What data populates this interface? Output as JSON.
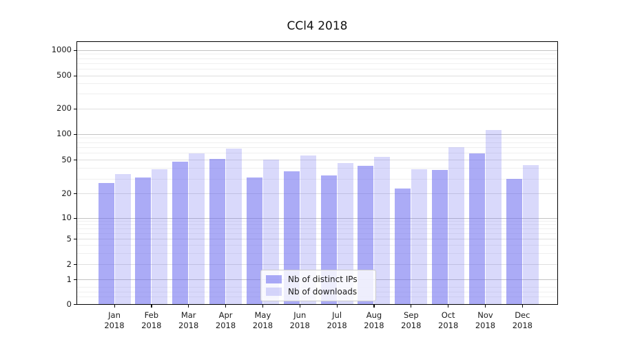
{
  "title": "CCl4 2018",
  "year_label": "2018",
  "months": [
    "Jan",
    "Feb",
    "Mar",
    "Apr",
    "May",
    "Jun",
    "Jul",
    "Aug",
    "Sep",
    "Oct",
    "Nov",
    "Dec"
  ],
  "y_axis": {
    "tick_labels": [
      "1000",
      "500",
      "200",
      "100",
      "50",
      "20",
      "10",
      "5",
      "2",
      "1",
      "0"
    ],
    "tick_values": [
      1000,
      500,
      200,
      100,
      50,
      20,
      10,
      5,
      2,
      1,
      0
    ]
  },
  "legend": {
    "items": [
      {
        "label": "Nb of distinct IPs",
        "key": "distinct-ips"
      },
      {
        "label": "Nb of downloads",
        "key": "downloads"
      }
    ]
  },
  "colors": {
    "bar_dark": "rgba(102,102,238,0.55)",
    "bar_light": "rgba(102,102,238,0.25)",
    "grid_major": "#c3c3c3",
    "grid_mid": "#dedede",
    "grid_minor": "#efefef",
    "axis": "#000000",
    "text": "#1a1a1a"
  },
  "chart_data": {
    "type": "bar",
    "title": "CCl4 2018",
    "categories": [
      "Jan 2018",
      "Feb 2018",
      "Mar 2018",
      "Apr 2018",
      "May 2018",
      "Jun 2018",
      "Jul 2018",
      "Aug 2018",
      "Sep 2018",
      "Oct 2018",
      "Nov 2018",
      "Dec 2018"
    ],
    "series": [
      {
        "name": "Nb of distinct IPs",
        "values": [
          27,
          31,
          48,
          52,
          31,
          37,
          33,
          43,
          23,
          38,
          60,
          30
        ]
      },
      {
        "name": "Nb of downloads",
        "values": [
          34,
          39,
          60,
          68,
          51,
          57,
          46,
          55,
          39,
          71,
          112,
          44
        ]
      }
    ],
    "yscale": "symlog",
    "yticks": [
      0,
      1,
      2,
      5,
      10,
      20,
      50,
      100,
      200,
      500,
      1000
    ],
    "ylim": [
      0,
      1000
    ],
    "grid": true,
    "legend_position": "lower center"
  }
}
